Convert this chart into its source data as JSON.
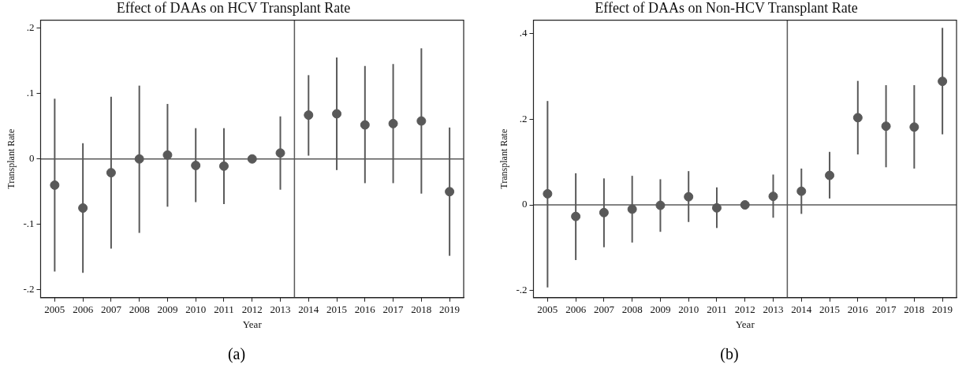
{
  "chart_data": [
    {
      "type": "scatter",
      "title": "Effect of DAAs on HCV Transplant Rate",
      "xlabel": "Year",
      "ylabel": "Transplant Rate",
      "x": [
        2005,
        2006,
        2007,
        2008,
        2009,
        2010,
        2011,
        2012,
        2013,
        2014,
        2015,
        2016,
        2017,
        2018,
        2019
      ],
      "series": [
        {
          "color": "#595959",
          "values": [
            -0.04,
            -0.075,
            -0.021,
            0,
            0.006,
            -0.01,
            -0.011,
            0,
            0.009,
            0.067,
            0.069,
            0.052,
            0.054,
            0.058,
            -0.05
          ],
          "errors": [
            [
              -0.172,
              0.092
            ],
            [
              -0.174,
              0.024
            ],
            [
              -0.137,
              0.095
            ],
            [
              -0.113,
              0.112
            ],
            [
              -0.073,
              0.084
            ],
            [
              -0.066,
              0.047
            ],
            [
              -0.069,
              0.047
            ],
            null,
            [
              -0.047,
              0.065
            ],
            [
              0.005,
              0.128
            ],
            [
              -0.017,
              0.155
            ],
            [
              -0.037,
              0.142
            ],
            [
              -0.037,
              0.145
            ],
            [
              -0.053,
              0.169
            ],
            [
              -0.148,
              0.048
            ]
          ]
        }
      ],
      "xlim": [
        2004.5,
        2019.5
      ],
      "xticks": [
        2005,
        2006,
        2007,
        2008,
        2009,
        2010,
        2011,
        2012,
        2013,
        2014,
        2015,
        2016,
        2017,
        2018,
        2019
      ],
      "ylim": [
        -0.212,
        0.212
      ],
      "yticks": [
        {
          "value": -0.2,
          "label": "-.2"
        },
        {
          "value": -0.1,
          "label": "-.1"
        },
        0,
        {
          "value": 0.1,
          "label": ".1"
        },
        {
          "value": 0.2,
          "label": ".2"
        }
      ],
      "ref_lines": [
        {
          "axis": "y",
          "value": 0,
          "color": "#595959"
        },
        {
          "axis": "x",
          "value": 2013.5,
          "color": "#595959"
        }
      ],
      "marker": "circle",
      "grid": false,
      "legend": false,
      "annotations": [
        "(a)"
      ]
    },
    {
      "type": "scatter",
      "title": "Effect of DAAs on Non-HCV Transplant Rate",
      "xlabel": "Year",
      "ylabel": "Transplant Rate",
      "x": [
        2005,
        2006,
        2007,
        2008,
        2009,
        2010,
        2011,
        2012,
        2013,
        2014,
        2015,
        2016,
        2017,
        2018,
        2019
      ],
      "series": [
        {
          "color": "#595959",
          "values": [
            0.026,
            -0.027,
            -0.018,
            -0.01,
            -0.001,
            0.019,
            -0.007,
            0,
            0.02,
            0.032,
            0.069,
            0.204,
            0.184,
            0.182,
            0.289
          ],
          "errors": [
            [
              -0.193,
              0.243
            ],
            [
              -0.129,
              0.074
            ],
            [
              -0.099,
              0.062
            ],
            [
              -0.088,
              0.068
            ],
            [
              -0.063,
              0.06
            ],
            [
              -0.04,
              0.079
            ],
            [
              -0.054,
              0.041
            ],
            null,
            [
              -0.03,
              0.071
            ],
            [
              -0.021,
              0.085
            ],
            [
              0.015,
              0.124
            ],
            [
              0.118,
              0.29
            ],
            [
              0.088,
              0.28
            ],
            [
              0.085,
              0.28
            ],
            [
              0.165,
              0.414
            ]
          ]
        }
      ],
      "xlim": [
        2004.5,
        2019.5
      ],
      "xticks": [
        2005,
        2006,
        2007,
        2008,
        2009,
        2010,
        2011,
        2012,
        2013,
        2014,
        2015,
        2016,
        2017,
        2018,
        2019
      ],
      "ylim": [
        -0.217,
        0.432
      ],
      "yticks": [
        {
          "value": -0.2,
          "label": "-.2"
        },
        0,
        {
          "value": 0.2,
          "label": ".2"
        },
        {
          "value": 0.4,
          "label": ".4"
        }
      ],
      "ref_lines": [
        {
          "axis": "y",
          "value": 0,
          "color": "#595959"
        },
        {
          "axis": "x",
          "value": 2013.5,
          "color": "#595959"
        }
      ],
      "marker": "circle",
      "grid": false,
      "legend": false,
      "annotations": [
        "(b)"
      ]
    }
  ]
}
